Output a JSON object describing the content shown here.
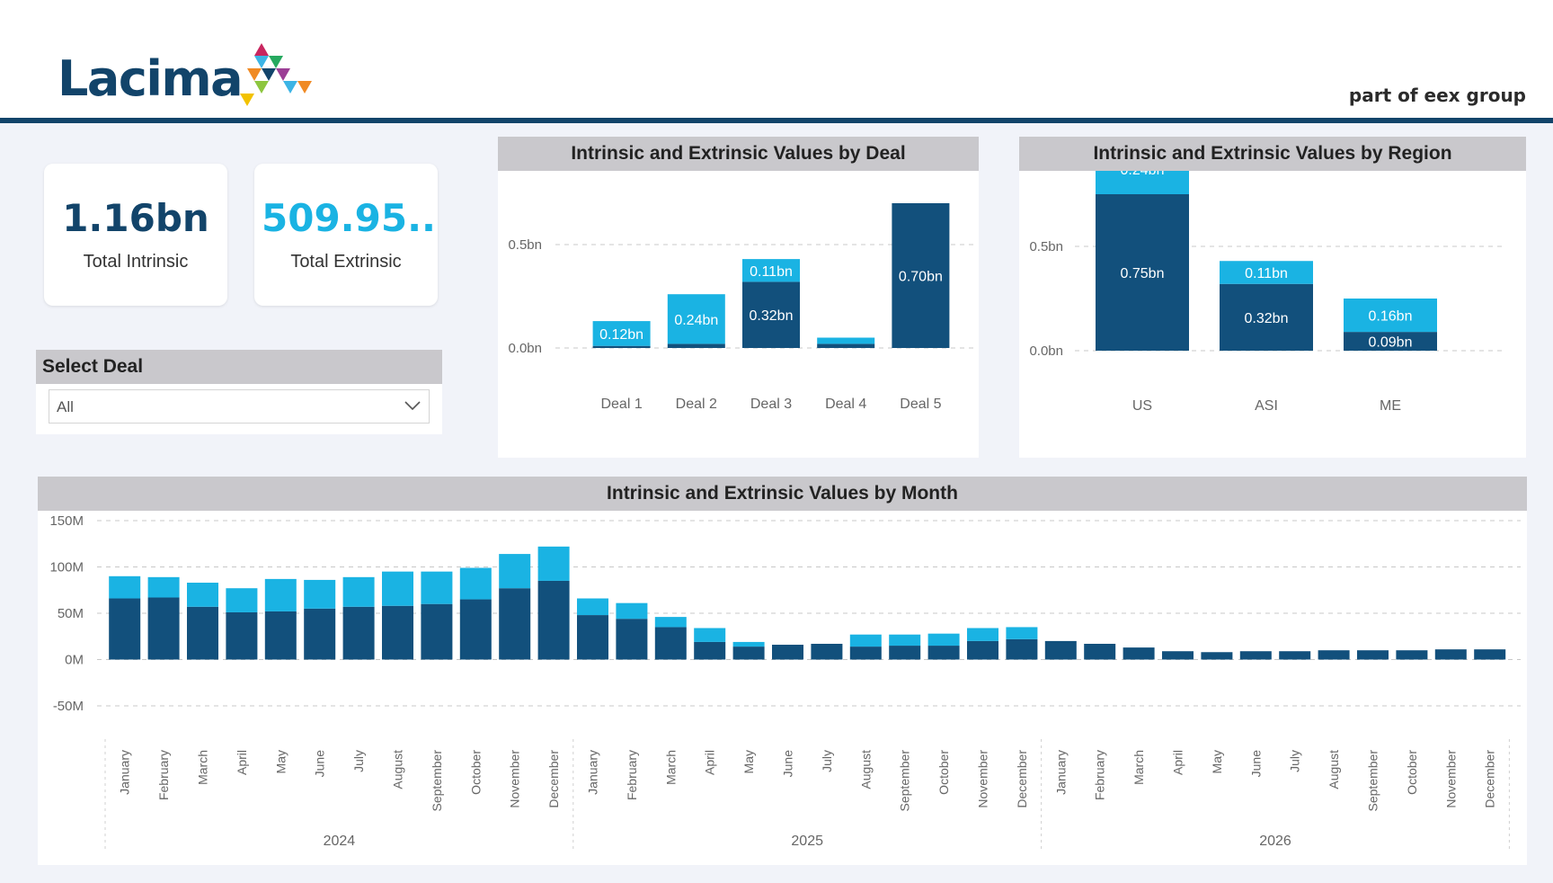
{
  "header": {
    "logo_text": "Lacima",
    "tagline": "part of eex group"
  },
  "kpis": [
    {
      "value": "1.16bn",
      "label": "Total Intrinsic",
      "color": "#12446a"
    },
    {
      "value": "509.95..",
      "label": "Total Extrinsic",
      "color": "#1ab3e3"
    }
  ],
  "select_deal": {
    "title": "Select Deal",
    "value": "All"
  },
  "colors": {
    "intrinsic": "#12507c",
    "extrinsic": "#1ab3e3",
    "header_band": "#c9c8cc",
    "rule": "#12446a"
  },
  "legend": {
    "intrinsic": "Intrinsic",
    "extrinsic": "Extrinsic"
  },
  "charts": {
    "deal": {
      "title": "Intrinsic and Extrinsic Values by Deal",
      "chart_data": {
        "type": "bar",
        "stacked": true,
        "categories": [
          "Deal 1",
          "Deal 2",
          "Deal 3",
          "Deal 4",
          "Deal 5"
        ],
        "series": [
          {
            "name": "Intrinsic",
            "values": [
              0.01,
              0.02,
              0.32,
              0.02,
              0.7
            ],
            "labels": [
              "",
              "",
              "0.32bn",
              "",
              "0.70bn"
            ]
          },
          {
            "name": "Extrinsic",
            "values": [
              0.12,
              0.24,
              0.11,
              0.03,
              0
            ],
            "labels": [
              "0.12bn",
              "0.24bn",
              "0.11bn",
              "",
              ""
            ]
          }
        ],
        "yticks": [
          {
            "v": 0,
            "label": "0.0bn"
          },
          {
            "v": 0.5,
            "label": "0.5bn"
          }
        ],
        "ylim": [
          0,
          0.72
        ],
        "legend_position": "top-center"
      }
    },
    "region": {
      "title": "Intrinsic and Extrinsic Values by Region",
      "chart_data": {
        "type": "bar",
        "stacked": true,
        "categories": [
          "US",
          "ASI",
          "ME"
        ],
        "series": [
          {
            "name": "Intrinsic",
            "values": [
              0.75,
              0.32,
              0.09
            ],
            "labels": [
              "0.75bn",
              "0.32bn",
              "0.09bn"
            ]
          },
          {
            "name": "Extrinsic",
            "values": [
              0.24,
              0.11,
              0.16
            ],
            "labels": [
              "0.24bn",
              "0.11bn",
              "0.16bn"
            ]
          }
        ],
        "yticks": [
          {
            "v": 0,
            "label": "0.0bn"
          },
          {
            "v": 0.5,
            "label": "0.5bn"
          },
          {
            "v": 1.0,
            "label": "1.0bn"
          }
        ],
        "ylim": [
          0,
          1.0
        ],
        "legend_position": "top-center"
      }
    },
    "month": {
      "title": "Intrinsic and Extrinsic Values by Month",
      "chart_data": {
        "type": "bar",
        "stacked": true,
        "categories": [
          "January",
          "February",
          "March",
          "April",
          "May",
          "June",
          "July",
          "August",
          "September",
          "October",
          "November",
          "December",
          "January",
          "February",
          "March",
          "April",
          "May",
          "June",
          "July",
          "August",
          "September",
          "October",
          "November",
          "December",
          "January",
          "February",
          "March",
          "April",
          "May",
          "June",
          "July",
          "August",
          "September",
          "October",
          "November",
          "December"
        ],
        "groups": [
          {
            "label": "2024",
            "count": 12
          },
          {
            "label": "2025",
            "count": 12
          },
          {
            "label": "2026",
            "count": 12
          }
        ],
        "series": [
          {
            "name": "Intrinsic",
            "values": [
              66,
              67,
              57,
              51,
              52,
              55,
              57,
              58,
              60,
              65,
              77,
              85,
              48,
              44,
              35,
              19,
              14,
              16,
              17,
              14,
              15,
              15,
              20,
              22,
              20,
              17,
              13,
              9,
              8,
              9,
              9,
              10,
              10,
              10,
              11,
              11
            ]
          },
          {
            "name": "Extrinsic",
            "values": [
              24,
              22,
              26,
              26,
              35,
              31,
              32,
              37,
              35,
              34,
              37,
              37,
              18,
              17,
              11,
              15,
              5,
              0,
              0,
              13,
              12,
              13,
              14,
              13,
              0,
              0,
              0,
              0,
              0,
              0,
              0,
              0,
              0,
              0,
              0,
              0
            ]
          }
        ],
        "yticks": [
          {
            "v": -50,
            "label": "-50M"
          },
          {
            "v": 0,
            "label": "0M"
          },
          {
            "v": 50,
            "label": "50M"
          },
          {
            "v": 100,
            "label": "100M"
          },
          {
            "v": 150,
            "label": "150M"
          }
        ],
        "ylim": [
          -50,
          150
        ],
        "legend_position": "top-center"
      }
    }
  }
}
